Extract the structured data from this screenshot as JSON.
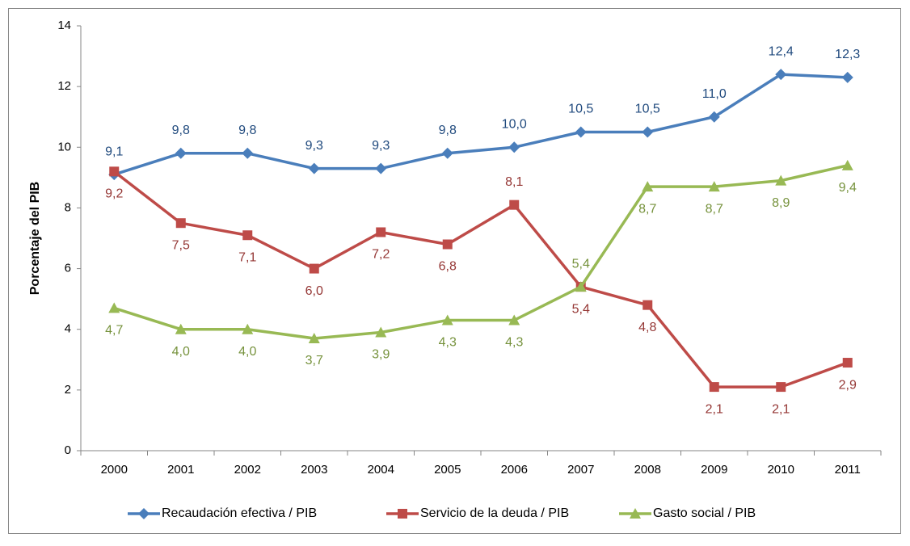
{
  "chart_data": {
    "type": "line",
    "y_label": "Porcentaje del PIB",
    "categories": [
      "2000",
      "2001",
      "2002",
      "2003",
      "2004",
      "2005",
      "2006",
      "2007",
      "2008",
      "2009",
      "2010",
      "2011"
    ],
    "series": [
      {
        "name": "Recaudación efectiva / PIB",
        "color": "#4a7ebb",
        "label_color": "#1f497d",
        "values": [
          9.1,
          9.8,
          9.8,
          9.3,
          9.3,
          9.8,
          10.0,
          10.5,
          10.5,
          11.0,
          12.4,
          12.3
        ],
        "value_labels": [
          "9,1",
          "9,8",
          "9,8",
          "9,3",
          "9,3",
          "9,8",
          "10,0",
          "10,5",
          "10,5",
          "11,0",
          "12,4",
          "12,3"
        ]
      },
      {
        "name": "Servicio de la deuda / PIB",
        "color": "#be4b48",
        "label_color": "#953735",
        "values": [
          9.2,
          7.5,
          7.1,
          6.0,
          7.2,
          6.8,
          8.1,
          5.4,
          4.8,
          2.1,
          2.1,
          2.9
        ],
        "value_labels": [
          "9,2",
          "7,5",
          "7,1",
          "6,0",
          "7,2",
          "6,8",
          "8,1",
          "5,4",
          "4,8",
          "2,1",
          "2,1",
          "2,9"
        ]
      },
      {
        "name": "Gasto social / PIB",
        "color": "#98b954",
        "label_color": "#76923c",
        "values": [
          4.7,
          4.0,
          4.0,
          3.7,
          3.9,
          4.3,
          4.3,
          5.4,
          8.7,
          8.7,
          8.9,
          9.4
        ],
        "value_labels": [
          "4,7",
          "4,0",
          "4,0",
          "3,7",
          "3,9",
          "4,3",
          "4,3",
          "5,4",
          "8,7",
          "8,7",
          "8,9",
          "9,4"
        ]
      }
    ],
    "ylim": [
      0,
      14
    ],
    "yticks": [
      0,
      2,
      4,
      6,
      8,
      10,
      12,
      14
    ],
    "grid": false,
    "legend": "bottom"
  }
}
